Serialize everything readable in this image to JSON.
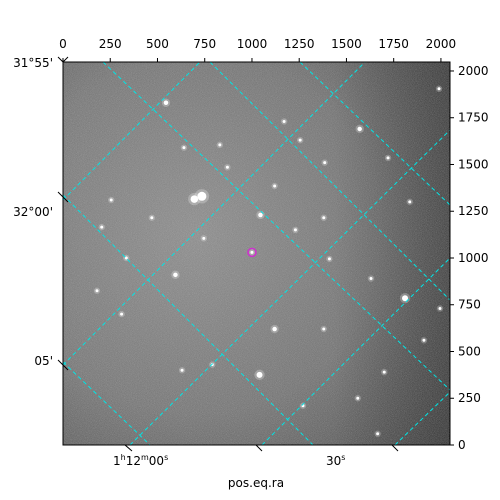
{
  "chart_data": {
    "type": "image",
    "colormap": "grayscale",
    "image_size": [
      2048,
      2048
    ],
    "xlabel": "pos.eq.ra",
    "top_x_ticks": [
      "0",
      "250",
      "500",
      "750",
      "1000",
      "1250",
      "1500",
      "1750",
      "2000"
    ],
    "top_x_values": [
      0,
      250,
      500,
      750,
      1000,
      1250,
      1500,
      1750,
      2000
    ],
    "right_y_ticks": [
      "0",
      "250",
      "500",
      "750",
      "1000",
      "1250",
      "1500",
      "1750",
      "2000"
    ],
    "right_y_values": [
      0,
      250,
      500,
      750,
      1000,
      1250,
      1500,
      1750,
      2000
    ],
    "bottom_ra_ticks": [
      {
        "base": "1",
        "sup1": "h",
        "mid": "12",
        "sup2": "m",
        "tail": "00",
        "sup3": "s"
      },
      {
        "base": "",
        "sup1": "",
        "mid": "",
        "sup2": "",
        "tail": "30",
        "sup3": "s"
      }
    ],
    "left_dec_ticks": [
      "31°55'",
      "32°00'",
      "05'"
    ],
    "grid": {
      "color": "#00e5e5",
      "style": "dashed"
    },
    "marker": {
      "type": "circle",
      "color": "#cc33cc",
      "pixel": [
        1000,
        1030
      ]
    },
    "stars": [
      {
        "x": 735,
        "y": 1330,
        "r": 6
      },
      {
        "x": 695,
        "y": 1315,
        "r": 5
      },
      {
        "x": 1045,
        "y": 1230,
        "r": 3
      },
      {
        "x": 1570,
        "y": 1690,
        "r": 3
      },
      {
        "x": 1810,
        "y": 785,
        "r": 4
      },
      {
        "x": 1040,
        "y": 375,
        "r": 4
      },
      {
        "x": 1120,
        "y": 620,
        "r": 3
      },
      {
        "x": 595,
        "y": 910,
        "r": 3
      },
      {
        "x": 1000,
        "y": 1030,
        "r": 2
      },
      {
        "x": 1230,
        "y": 1150,
        "r": 2
      },
      {
        "x": 1380,
        "y": 1215,
        "r": 2
      },
      {
        "x": 1835,
        "y": 1300,
        "r": 2
      },
      {
        "x": 1720,
        "y": 1535,
        "r": 2
      },
      {
        "x": 1255,
        "y": 1630,
        "r": 2
      },
      {
        "x": 545,
        "y": 1830,
        "r": 3
      },
      {
        "x": 310,
        "y": 700,
        "r": 2
      },
      {
        "x": 790,
        "y": 430,
        "r": 2
      },
      {
        "x": 630,
        "y": 400,
        "r": 2
      },
      {
        "x": 1380,
        "y": 620,
        "r": 2
      },
      {
        "x": 1910,
        "y": 560,
        "r": 2
      },
      {
        "x": 1270,
        "y": 210,
        "r": 2
      },
      {
        "x": 1665,
        "y": 60,
        "r": 2
      },
      {
        "x": 1990,
        "y": 1905,
        "r": 2
      },
      {
        "x": 870,
        "y": 1485,
        "r": 2
      },
      {
        "x": 745,
        "y": 1105,
        "r": 2
      },
      {
        "x": 335,
        "y": 1000,
        "r": 2
      },
      {
        "x": 470,
        "y": 1215,
        "r": 2
      },
      {
        "x": 1410,
        "y": 995,
        "r": 2
      },
      {
        "x": 180,
        "y": 825,
        "r": 2
      },
      {
        "x": 1630,
        "y": 890,
        "r": 2
      },
      {
        "x": 1170,
        "y": 1730,
        "r": 2
      },
      {
        "x": 1385,
        "y": 1510,
        "r": 2
      },
      {
        "x": 255,
        "y": 1310,
        "r": 2
      },
      {
        "x": 830,
        "y": 1605,
        "r": 2
      },
      {
        "x": 1120,
        "y": 1385,
        "r": 2
      },
      {
        "x": 640,
        "y": 1590,
        "r": 2
      },
      {
        "x": 1560,
        "y": 250,
        "r": 2
      },
      {
        "x": 205,
        "y": 1165,
        "r": 2
      },
      {
        "x": 1995,
        "y": 730,
        "r": 2
      },
      {
        "x": 1700,
        "y": 390,
        "r": 2
      }
    ]
  }
}
